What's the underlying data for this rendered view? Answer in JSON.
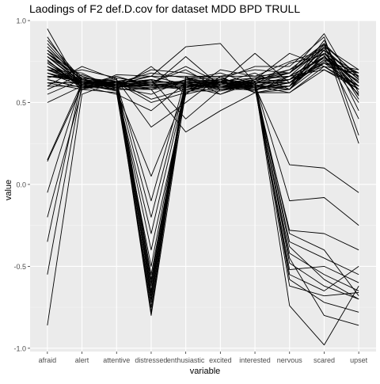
{
  "chart_data": {
    "type": "line",
    "title": "Laodings of F2 def.D.cov for dataset MDD BPD TRULL",
    "xlabel": "variable",
    "ylabel": "value",
    "categories": [
      "afraid",
      "alert",
      "attentive",
      "distressed",
      "enthusiastic",
      "excited",
      "interested",
      "nervous",
      "scared",
      "upset"
    ],
    "ylim": [
      -1.02,
      1.0
    ],
    "yticks": [
      -1.0,
      -0.5,
      0.0,
      0.5,
      1.0
    ],
    "ytick_labels": [
      "-1.0",
      "-0.5",
      "0.0",
      "0.5",
      "1.0"
    ],
    "grid": true,
    "legend": "none",
    "colors": {
      "panel": "#ebebeb",
      "grid_major": "#ffffff",
      "grid_minor": "#f5f5f5",
      "line": "#000000",
      "text": "#4d4d4d",
      "title": "#000000"
    },
    "series": [
      {
        "values": [
          0.86,
          0.63,
          0.62,
          0.68,
          0.65,
          0.66,
          0.7,
          0.68,
          0.85,
          0.66
        ]
      },
      {
        "values": [
          0.8,
          0.66,
          0.6,
          0.58,
          0.6,
          0.62,
          0.63,
          0.7,
          0.8,
          0.62
        ]
      },
      {
        "values": [
          0.75,
          0.62,
          0.63,
          0.52,
          0.58,
          0.6,
          0.6,
          0.66,
          0.78,
          0.58
        ]
      },
      {
        "values": [
          0.7,
          0.68,
          0.58,
          0.72,
          0.55,
          0.7,
          0.66,
          0.75,
          0.82,
          0.4
        ]
      },
      {
        "values": [
          0.65,
          0.7,
          0.65,
          0.62,
          0.7,
          0.58,
          0.58,
          0.62,
          0.74,
          0.7
        ]
      },
      {
        "values": [
          0.9,
          0.6,
          0.55,
          0.45,
          0.62,
          0.64,
          0.72,
          0.72,
          0.9,
          0.3
        ]
      },
      {
        "values": [
          0.95,
          0.58,
          0.67,
          0.66,
          0.66,
          0.55,
          0.64,
          0.8,
          0.72,
          0.68
        ]
      },
      {
        "values": [
          0.6,
          0.72,
          0.64,
          0.35,
          0.5,
          0.66,
          0.56,
          0.6,
          0.76,
          0.55
        ]
      },
      {
        "values": [
          0.55,
          0.64,
          0.6,
          0.7,
          0.68,
          0.62,
          0.68,
          0.58,
          0.86,
          0.25
        ]
      },
      {
        "values": [
          0.78,
          0.61,
          0.66,
          0.6,
          0.58,
          0.6,
          0.62,
          0.68,
          0.83,
          0.64
        ]
      },
      {
        "values": [
          0.82,
          0.66,
          0.59,
          0.55,
          0.64,
          0.68,
          0.61,
          0.74,
          0.79,
          0.5
        ]
      },
      {
        "values": [
          0.68,
          0.63,
          0.62,
          0.5,
          0.56,
          0.63,
          0.65,
          0.66,
          0.7,
          0.6
        ]
      },
      {
        "values": [
          0.14,
          0.6,
          0.61,
          -0.8,
          0.58,
          0.62,
          0.6,
          0.6,
          0.75,
          0.66
        ]
      },
      {
        "values": [
          -0.05,
          0.63,
          0.6,
          -0.75,
          0.62,
          0.58,
          0.62,
          0.62,
          0.8,
          0.62
        ]
      },
      {
        "values": [
          -0.2,
          0.58,
          0.56,
          -0.7,
          0.56,
          0.64,
          0.56,
          0.56,
          0.7,
          0.58
        ]
      },
      {
        "values": [
          -0.35,
          0.65,
          0.62,
          -0.6,
          0.64,
          0.6,
          0.64,
          0.66,
          0.84,
          0.7
        ]
      },
      {
        "values": [
          -0.55,
          0.61,
          0.57,
          -0.5,
          0.6,
          0.62,
          0.58,
          0.64,
          0.78,
          0.55
        ]
      },
      {
        "values": [
          -0.86,
          0.55,
          0.63,
          -0.65,
          0.66,
          0.66,
          0.66,
          0.68,
          0.86,
          0.52
        ]
      },
      {
        "values": [
          0.15,
          0.62,
          0.59,
          -0.4,
          0.55,
          0.6,
          0.6,
          0.58,
          0.82,
          0.64
        ]
      },
      {
        "values": [
          0.5,
          0.6,
          0.58,
          -0.3,
          0.6,
          0.55,
          0.62,
          0.62,
          0.76,
          0.68
        ]
      },
      {
        "values": [
          0.7,
          0.64,
          0.6,
          -0.2,
          0.62,
          0.58,
          0.6,
          0.64,
          0.72,
          0.6
        ]
      },
      {
        "values": [
          0.8,
          0.62,
          0.64,
          -0.55,
          0.58,
          0.63,
          0.58,
          0.6,
          0.88,
          0.45
        ]
      },
      {
        "values": [
          0.76,
          0.59,
          0.62,
          -0.1,
          0.65,
          0.61,
          0.64,
          0.68,
          0.92,
          0.56
        ]
      },
      {
        "values": [
          0.66,
          0.65,
          0.57,
          0.05,
          0.57,
          0.57,
          0.61,
          0.58,
          0.78,
          0.62
        ]
      },
      {
        "values": [
          0.72,
          0.6,
          0.61,
          -0.78,
          0.64,
          0.65,
          0.59,
          0.62,
          0.8,
          0.58
        ]
      },
      {
        "values": [
          0.62,
          0.58,
          0.63,
          -0.68,
          0.61,
          0.59,
          0.63,
          0.64,
          0.74,
          0.66
        ]
      },
      {
        "values": [
          0.84,
          0.63,
          0.58,
          -0.62,
          0.59,
          0.62,
          0.6,
          0.6,
          0.84,
          0.54
        ]
      },
      {
        "values": [
          0.58,
          0.67,
          0.6,
          -0.72,
          0.63,
          0.6,
          0.57,
          0.66,
          0.77,
          0.63
        ]
      },
      {
        "values": [
          0.74,
          0.61,
          0.65,
          -0.58,
          0.6,
          0.64,
          0.62,
          0.62,
          0.8,
          0.6
        ]
      },
      {
        "values": [
          0.88,
          0.64,
          0.59,
          -0.66,
          0.62,
          0.61,
          0.65,
          0.7,
          0.86,
          0.65
        ]
      },
      {
        "values": [
          0.64,
          0.59,
          0.62,
          0.64,
          0.4,
          0.58,
          0.6,
          0.56,
          0.72,
          0.58
        ]
      },
      {
        "values": [
          0.7,
          0.62,
          0.6,
          0.6,
          0.78,
          0.6,
          0.58,
          0.6,
          0.78,
          0.62
        ]
      },
      {
        "values": [
          0.78,
          0.65,
          0.63,
          0.66,
          0.84,
          0.86,
          0.62,
          0.64,
          0.82,
          0.64
        ]
      },
      {
        "values": [
          0.6,
          0.6,
          0.58,
          0.58,
          0.32,
          0.45,
          0.56,
          0.58,
          0.74,
          0.6
        ]
      },
      {
        "values": [
          0.66,
          0.63,
          0.61,
          0.62,
          0.72,
          0.62,
          0.8,
          0.62,
          0.8,
          0.68
        ]
      },
      {
        "values": [
          0.72,
          0.61,
          0.62,
          0.6,
          0.62,
          0.63,
          0.6,
          0.12,
          0.1,
          -0.05
        ]
      },
      {
        "values": [
          0.8,
          0.64,
          0.6,
          0.64,
          0.6,
          0.6,
          0.62,
          -0.1,
          -0.08,
          -0.25
        ]
      },
      {
        "values": [
          0.68,
          0.6,
          0.63,
          0.58,
          0.64,
          0.62,
          0.58,
          -0.28,
          -0.3,
          -0.4
        ]
      },
      {
        "values": [
          0.62,
          0.62,
          0.59,
          0.62,
          0.58,
          0.58,
          0.61,
          -0.35,
          -0.45,
          -0.55
        ]
      },
      {
        "values": [
          0.76,
          0.58,
          0.62,
          0.6,
          0.63,
          0.64,
          0.6,
          -0.42,
          -0.55,
          -0.65
        ]
      },
      {
        "values": [
          0.84,
          0.63,
          0.61,
          0.66,
          0.61,
          0.61,
          0.63,
          -0.48,
          -0.62,
          -0.7
        ]
      },
      {
        "values": [
          0.7,
          0.61,
          0.58,
          0.59,
          0.6,
          0.6,
          0.59,
          -0.52,
          -0.5,
          -0.6
        ]
      },
      {
        "values": [
          0.66,
          0.64,
          0.62,
          0.63,
          0.62,
          0.62,
          0.62,
          -0.58,
          -0.72,
          -0.78
        ]
      },
      {
        "values": [
          0.74,
          0.6,
          0.6,
          0.61,
          0.59,
          0.63,
          0.6,
          -0.62,
          -0.68,
          -0.66
        ]
      },
      {
        "values": [
          0.78,
          0.62,
          0.63,
          0.62,
          0.63,
          0.6,
          0.61,
          -0.74,
          -0.98,
          -0.62
        ]
      },
      {
        "values": [
          0.64,
          0.59,
          0.61,
          0.6,
          0.61,
          0.59,
          0.6,
          -0.45,
          -0.8,
          -0.86
        ]
      },
      {
        "values": [
          0.72,
          0.63,
          0.59,
          0.64,
          0.6,
          0.61,
          0.63,
          -0.38,
          -0.58,
          -0.7
        ]
      },
      {
        "values": [
          0.82,
          0.61,
          0.62,
          0.61,
          0.62,
          0.62,
          0.59,
          -0.55,
          -0.65,
          -0.5
        ]
      },
      {
        "values": [
          0.68,
          0.62,
          0.6,
          0.59,
          0.61,
          0.6,
          0.61,
          -0.3,
          -0.4,
          -0.68
        ]
      }
    ]
  }
}
